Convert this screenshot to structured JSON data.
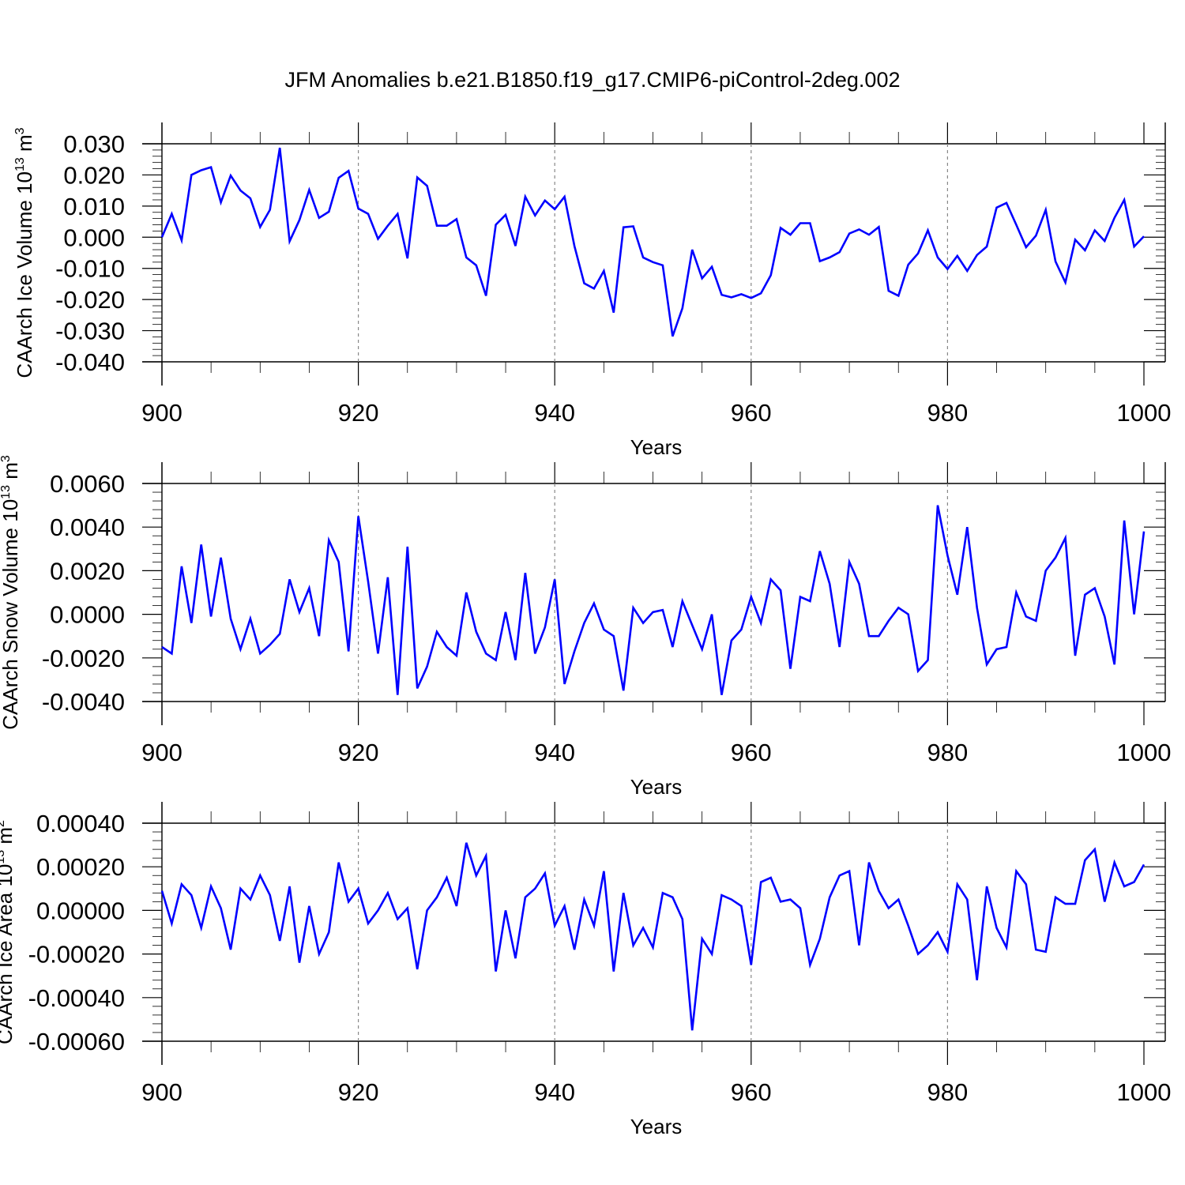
{
  "title": "JFM Anomalies b.e21.B1850.f19_g17.CMIP6-piControl-2deg.002",
  "colors": {
    "series": "#0000ff",
    "grid": "#888888",
    "axis": "#000000"
  },
  "chart_data": [
    {
      "type": "line",
      "ylabel_prefix": "CAArch Ice Volume 10",
      "ylabel_exp": "13",
      "ylabel_unit": " m",
      "ylabel_unit_exp": "3",
      "xlabel": "Years",
      "xlim": [
        900,
        1000
      ],
      "ylim": [
        -0.04,
        0.03
      ],
      "x_ticks": [
        900,
        920,
        940,
        960,
        980,
        1000
      ],
      "x_tick_labels": [
        "900",
        "920",
        "940",
        "960",
        "980",
        "1000"
      ],
      "y_ticks": [
        0.03,
        0.02,
        0.01,
        0.0,
        -0.01,
        -0.02,
        -0.03,
        -0.04
      ],
      "y_tick_labels": [
        "0.030",
        "0.020",
        "0.010",
        "0.000",
        "-0.010",
        "-0.020",
        "-0.030",
        "-0.040"
      ],
      "grid": "dashed vertical at x ticks",
      "x_start": 900,
      "x_step": 1,
      "values": [
        0.0,
        0.0075,
        -0.001,
        0.02,
        0.0215,
        0.0225,
        0.0112,
        0.0198,
        0.015,
        0.0125,
        0.0033,
        0.0088,
        0.0287,
        -0.0013,
        0.0055,
        0.0152,
        0.0062,
        0.0082,
        0.0191,
        0.0213,
        0.0092,
        0.0075,
        -0.0005,
        0.0037,
        0.0075,
        -0.0068,
        0.0192,
        0.0165,
        0.0037,
        0.0037,
        0.0058,
        -0.0065,
        -0.009,
        -0.0188,
        0.004,
        0.0072,
        -0.0028,
        0.013,
        0.007,
        0.0118,
        0.009,
        0.013,
        -0.0028,
        -0.0148,
        -0.0165,
        -0.0108,
        -0.0242,
        0.0032,
        0.0035,
        -0.0065,
        -0.008,
        -0.009,
        -0.0318,
        -0.0228,
        -0.004,
        -0.0132,
        -0.0095,
        -0.0185,
        -0.0193,
        -0.0183,
        -0.0195,
        -0.018,
        -0.0122,
        0.003,
        0.0008,
        0.0045,
        0.0045,
        -0.0077,
        -0.0065,
        -0.0048,
        0.0012,
        0.0025,
        0.0008,
        0.0033,
        -0.0172,
        -0.0188,
        -0.0088,
        -0.0052,
        0.0022,
        -0.0065,
        -0.0102,
        -0.006,
        -0.0108,
        -0.0057,
        -0.003,
        0.0095,
        0.011,
        0.004,
        -0.0032,
        0.0005,
        0.0088,
        -0.0078,
        -0.0145,
        -0.0008,
        -0.0042,
        0.0022,
        -0.0012,
        0.0062,
        0.012,
        -0.003,
        0.0003
      ]
    },
    {
      "type": "line",
      "ylabel_prefix": "CAArch Snow Volume 10",
      "ylabel_exp": "13",
      "ylabel_unit": " m",
      "ylabel_unit_exp": "3",
      "xlabel": "Years",
      "xlim": [
        900,
        1000
      ],
      "ylim": [
        -0.004,
        0.006
      ],
      "x_ticks": [
        900,
        920,
        940,
        960,
        980,
        1000
      ],
      "x_tick_labels": [
        "900",
        "920",
        "940",
        "960",
        "980",
        "1000"
      ],
      "y_ticks": [
        0.006,
        0.004,
        0.002,
        0.0,
        -0.002,
        -0.004
      ],
      "y_tick_labels": [
        "0.0060",
        "0.0040",
        "0.0020",
        "0.0000",
        "-0.0020",
        "-0.0040"
      ],
      "grid": "dashed vertical at x ticks",
      "x_start": 900,
      "x_step": 1,
      "values": [
        -0.0015,
        -0.0018,
        0.0022,
        -0.0004,
        0.0032,
        -0.0001,
        0.0026,
        -0.0002,
        -0.0016,
        -0.0002,
        -0.0018,
        -0.0014,
        -0.0009,
        0.0016,
        0.0001,
        0.0012,
        -0.001,
        0.0034,
        0.0024,
        -0.0017,
        0.0045,
        0.0015,
        -0.0018,
        0.0017,
        -0.0037,
        0.0031,
        -0.0034,
        -0.0024,
        -0.0008,
        -0.0015,
        -0.0019,
        0.001,
        -0.0008,
        -0.0018,
        -0.0021,
        0.0001,
        -0.0021,
        0.0019,
        -0.0018,
        -0.0006,
        0.0016,
        -0.0032,
        -0.0017,
        -0.0004,
        0.0005,
        -0.0007,
        -0.001,
        -0.0035,
        0.0003,
        -0.0004,
        0.0001,
        0.0002,
        -0.0015,
        0.0006,
        -0.0005,
        -0.0016,
        0.0,
        -0.0037,
        -0.0012,
        -0.0007,
        0.0008,
        -0.0004,
        0.0016,
        0.0011,
        -0.0025,
        0.0008,
        0.0006,
        0.0029,
        0.0014,
        -0.0015,
        0.0024,
        0.0014,
        -0.001,
        -0.001,
        -0.0003,
        0.0003,
        0.0,
        -0.0026,
        -0.0021,
        0.005,
        0.0027,
        0.0009,
        0.004,
        0.0003,
        -0.0023,
        -0.0016,
        -0.0015,
        0.001,
        -0.0001,
        -0.0003,
        0.002,
        0.0026,
        0.0035,
        -0.0019,
        0.0009,
        0.0012,
        -0.0001,
        -0.0023,
        0.0043,
        0.0,
        0.0038
      ]
    },
    {
      "type": "line",
      "ylabel_prefix": "CAArch Ice Area 10",
      "ylabel_exp": "13",
      "ylabel_unit": " m",
      "ylabel_unit_exp": "2",
      "xlabel": "Years",
      "xlim": [
        900,
        1000
      ],
      "ylim": [
        -0.0006,
        0.0004
      ],
      "x_ticks": [
        900,
        920,
        940,
        960,
        980,
        1000
      ],
      "x_tick_labels": [
        "900",
        "920",
        "940",
        "960",
        "980",
        "1000"
      ],
      "y_ticks": [
        0.0004,
        0.0002,
        0.0,
        -0.0002,
        -0.0004,
        -0.0006
      ],
      "y_tick_labels": [
        "0.00040",
        "0.00020",
        "0.00000",
        "-0.00020",
        "-0.00040",
        "-0.00060"
      ],
      "grid": "dashed vertical at x ticks",
      "x_start": 900,
      "x_step": 1,
      "values": [
        9e-05,
        -6e-05,
        0.00012,
        7e-05,
        -8e-05,
        0.00011,
        1e-05,
        -0.00018,
        0.0001,
        5e-05,
        0.00016,
        7e-05,
        -0.00014,
        0.00011,
        -0.00024,
        2e-05,
        -0.0002,
        -0.0001,
        0.00022,
        4e-05,
        0.0001,
        -6e-05,
        0.0,
        8e-05,
        -4e-05,
        1e-05,
        -0.00027,
        0.0,
        6e-05,
        0.00015,
        2e-05,
        0.00031,
        0.00016,
        0.00025,
        -0.00028,
        0.0,
        -0.00022,
        6e-05,
        0.0001,
        0.00017,
        -7e-05,
        2e-05,
        -0.00018,
        5e-05,
        -7e-05,
        0.00018,
        -0.00028,
        8e-05,
        -0.00016,
        -8e-05,
        -0.00017,
        8e-05,
        6e-05,
        -4e-05,
        -0.00055,
        -0.00013,
        -0.0002,
        7e-05,
        5e-05,
        2e-05,
        -0.00025,
        0.00013,
        0.00015,
        4e-05,
        5e-05,
        1e-05,
        -0.00025,
        -0.00013,
        6e-05,
        0.00016,
        0.00018,
        -0.00016,
        0.00022,
        9e-05,
        1e-05,
        5e-05,
        -7e-05,
        -0.0002,
        -0.00016,
        -0.0001,
        -0.00019,
        0.00012,
        5e-05,
        -0.00032,
        0.00011,
        -8e-05,
        -0.00017,
        0.00018,
        0.00012,
        -0.00018,
        -0.00019,
        6e-05,
        3e-05,
        3e-05,
        0.00023,
        0.00028,
        4e-05,
        0.00022,
        0.00011,
        0.00013,
        0.00021
      ]
    }
  ]
}
